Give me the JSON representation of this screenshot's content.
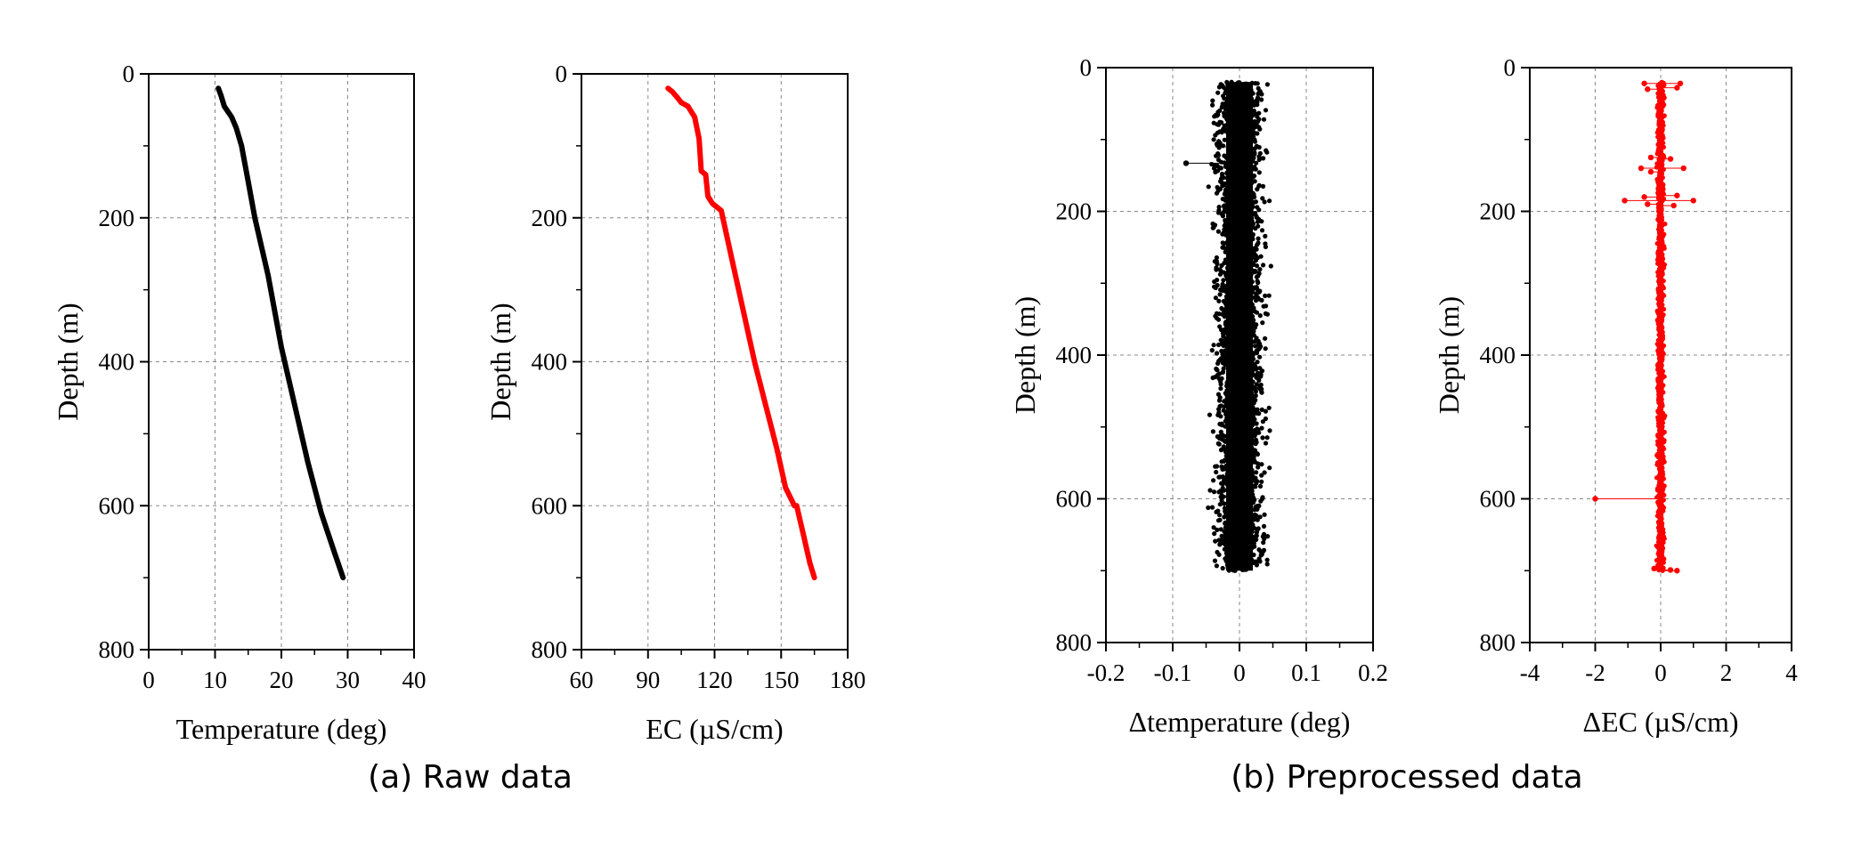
{
  "captions": {
    "a": "(a) Raw data",
    "b": "(b) Preprocessed data"
  },
  "colors": {
    "black_series": "#000000",
    "red_series": "#ff0000",
    "grid": "#888888"
  },
  "chart_data": [
    {
      "type": "line",
      "id": "raw-temperature",
      "title": "",
      "xlabel": "Temperature (deg)",
      "ylabel": "Depth (m)",
      "xlim": [
        0,
        40
      ],
      "ylim": [
        0,
        800
      ],
      "y_inverted": true,
      "xticks": [
        0,
        10,
        20,
        30,
        40
      ],
      "yticks": [
        0,
        200,
        400,
        600,
        800
      ],
      "color": "#000000",
      "series": [
        {
          "name": "Temperature",
          "x": [
            10.5,
            10.9,
            11.4,
            12.5,
            13.2,
            14.0,
            15.0,
            16.0,
            18.0,
            20.0,
            22.0,
            24.0,
            26.0,
            28.0,
            29.3
          ],
          "y": [
            20,
            30,
            45,
            60,
            75,
            100,
            150,
            200,
            280,
            380,
            460,
            540,
            610,
            665,
            700
          ]
        }
      ]
    },
    {
      "type": "line",
      "id": "raw-ec",
      "title": "",
      "xlabel": "EC (µS/cm)",
      "ylabel": "Depth (m)",
      "xlim": [
        60,
        180
      ],
      "ylim": [
        0,
        800
      ],
      "y_inverted": true,
      "xticks": [
        60,
        90,
        120,
        150,
        180
      ],
      "yticks": [
        0,
        200,
        400,
        600,
        800
      ],
      "color": "#ff0000",
      "series": [
        {
          "name": "EC",
          "x": [
            99,
            101,
            103,
            105,
            108,
            111,
            113,
            114,
            116,
            117,
            119,
            121,
            123,
            128,
            133,
            138,
            143,
            148,
            152,
            156,
            157,
            160,
            163,
            165
          ],
          "y": [
            20,
            25,
            32,
            40,
            45,
            60,
            90,
            135,
            140,
            170,
            180,
            185,
            190,
            260,
            330,
            400,
            460,
            520,
            575,
            600,
            600,
            640,
            680,
            700
          ]
        }
      ]
    },
    {
      "type": "scatter",
      "id": "preprocessed-temperature",
      "title": "",
      "xlabel": "Δtemperature (deg)",
      "ylabel": "Depth (m)",
      "xlim": [
        -0.2,
        0.2
      ],
      "ylim": [
        0,
        800
      ],
      "y_inverted": true,
      "xticks": [
        -0.2,
        -0.1,
        0.0,
        0.1,
        0.2
      ],
      "yticks": [
        0,
        200,
        400,
        600,
        800
      ],
      "color": "#000000",
      "band": {
        "depth_from": 20,
        "depth_to": 700,
        "x_min": -0.05,
        "x_max": 0.05,
        "mean": 0.0
      },
      "outliers": [
        {
          "x": -0.08,
          "y": 133
        }
      ]
    },
    {
      "type": "scatter",
      "id": "preprocessed-ec",
      "title": "",
      "xlabel": "ΔEC (µS/cm)",
      "ylabel": "Depth (m)",
      "xlim": [
        -4,
        4
      ],
      "ylim": [
        0,
        800
      ],
      "y_inverted": true,
      "xticks": [
        -4,
        -2,
        0,
        2,
        4
      ],
      "yticks": [
        0,
        200,
        400,
        600,
        800
      ],
      "color": "#ff0000",
      "band": {
        "depth_from": 20,
        "depth_to": 700,
        "x_min": -0.15,
        "x_max": 0.15,
        "mean": 0.0
      },
      "outliers": [
        {
          "x": -0.5,
          "y": 22
        },
        {
          "x": 0.6,
          "y": 22
        },
        {
          "x": -0.4,
          "y": 30
        },
        {
          "x": 0.5,
          "y": 28
        },
        {
          "x": -0.3,
          "y": 125
        },
        {
          "x": 0.3,
          "y": 127
        },
        {
          "x": -0.6,
          "y": 140
        },
        {
          "x": 0.7,
          "y": 140
        },
        {
          "x": -0.3,
          "y": 145
        },
        {
          "x": -1.1,
          "y": 185
        },
        {
          "x": 1.0,
          "y": 185
        },
        {
          "x": -0.5,
          "y": 180
        },
        {
          "x": 0.5,
          "y": 178
        },
        {
          "x": -0.4,
          "y": 190
        },
        {
          "x": 0.4,
          "y": 192
        },
        {
          "x": -2.0,
          "y": 600
        },
        {
          "x": -0.2,
          "y": 697
        },
        {
          "x": 0.3,
          "y": 699
        },
        {
          "x": 0.5,
          "y": 700
        }
      ]
    }
  ]
}
